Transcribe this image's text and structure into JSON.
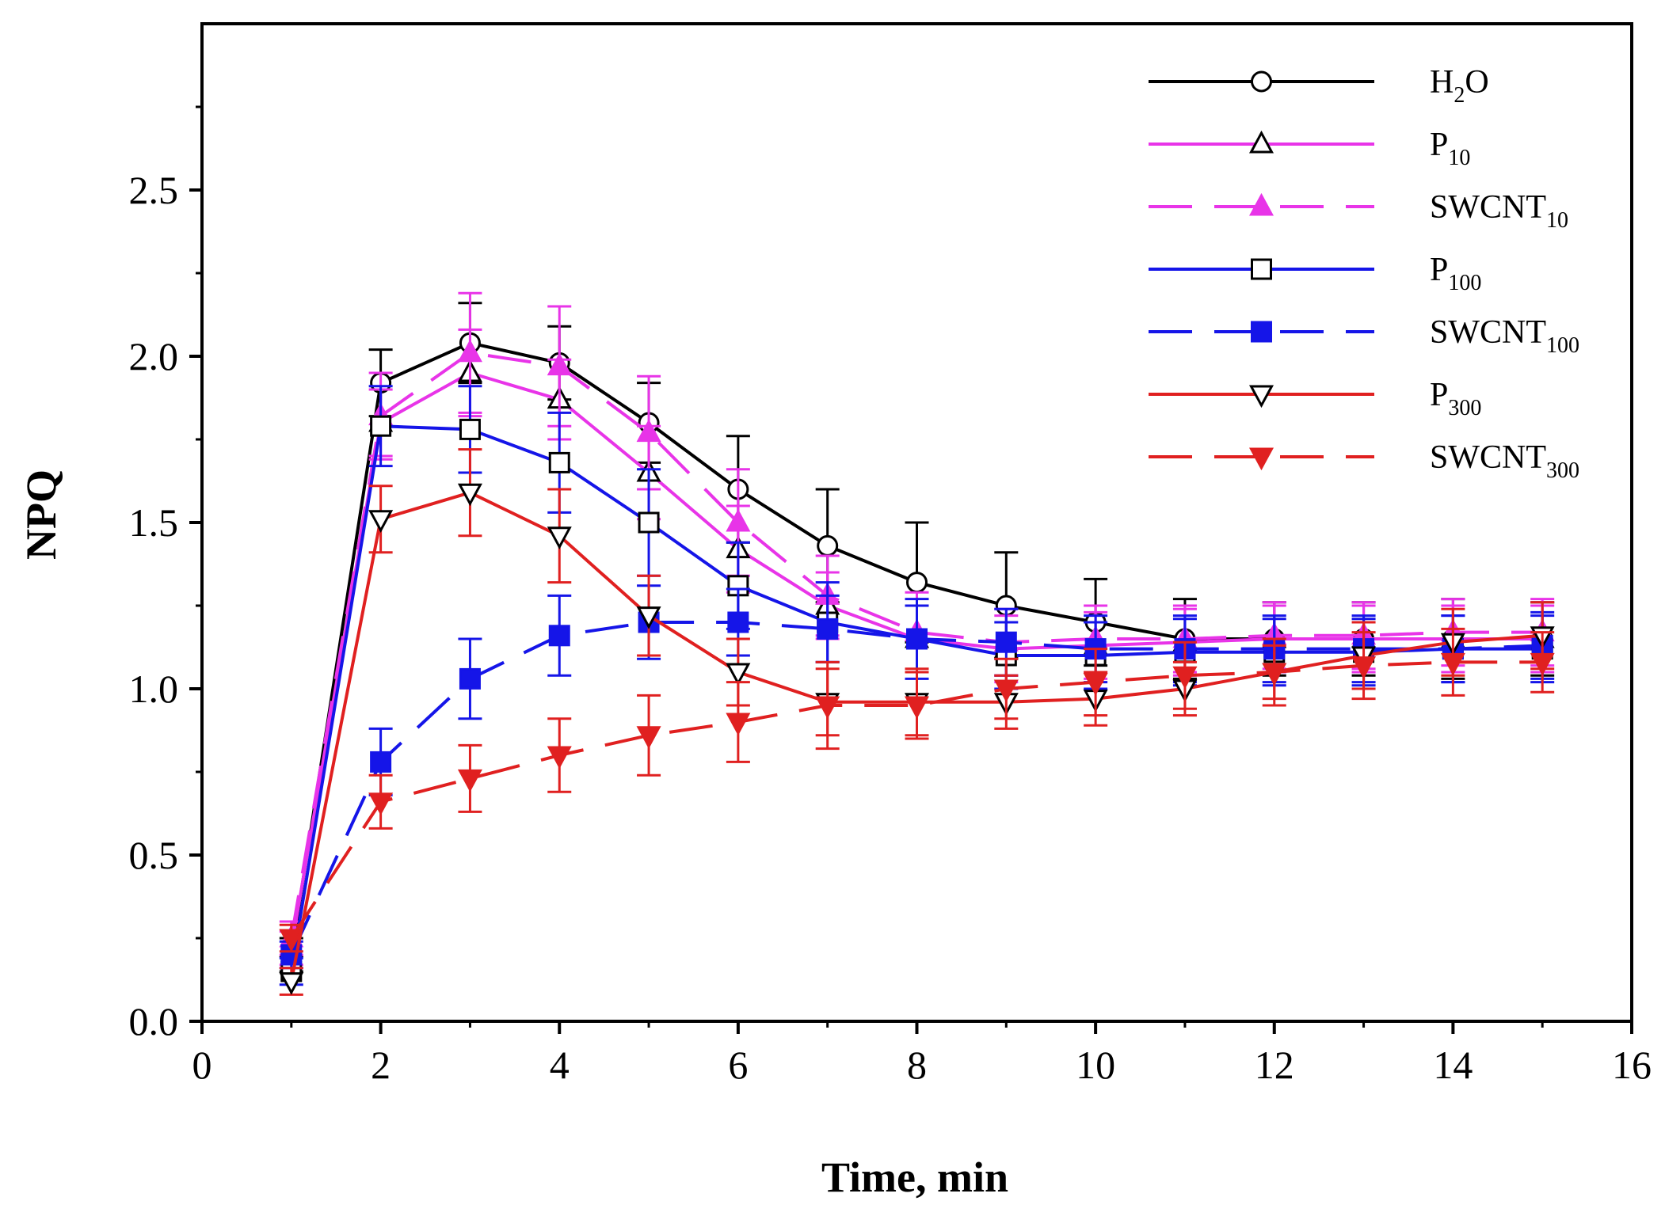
{
  "chart_data": {
    "type": "line",
    "title": "",
    "xlabel": "Time, min",
    "ylabel": "NPQ",
    "xlim": [
      0,
      16
    ],
    "ylim": [
      0,
      3
    ],
    "xticks": [
      0,
      2,
      4,
      6,
      8,
      10,
      12,
      14,
      16
    ],
    "yticks": [
      0,
      0.5,
      1,
      1.5,
      2,
      2.5
    ],
    "xtick_labels": [
      "0",
      "2",
      "4",
      "6",
      "8",
      "10",
      "12",
      "14",
      "16"
    ],
    "ytick_labels": [
      "0.0",
      "0.5",
      "1.0",
      "1.5",
      "2.0",
      "2.5"
    ],
    "grid": false,
    "legend_position": "top-right",
    "x": [
      1,
      2,
      3,
      4,
      5,
      6,
      7,
      8,
      9,
      10,
      11,
      12,
      13,
      14,
      15
    ],
    "series": [
      {
        "name": "H2O",
        "label_main": "H",
        "label_sub": "2",
        "label_tail": "O",
        "color": "#000000",
        "dash": "solid",
        "marker": "circle",
        "filled": false,
        "values": [
          0.2,
          1.92,
          2.04,
          1.98,
          1.8,
          1.6,
          1.43,
          1.32,
          1.25,
          1.2,
          1.15,
          1.15,
          1.15,
          1.15,
          1.15
        ],
        "errors": [
          0.05,
          0.1,
          0.12,
          0.11,
          0.12,
          0.16,
          0.17,
          0.18,
          0.16,
          0.13,
          0.12,
          0.11,
          0.11,
          0.12,
          0.11
        ]
      },
      {
        "name": "P10",
        "label_main": "P",
        "label_sub": "10",
        "label_tail": "",
        "color": "#e834e8",
        "dash": "solid",
        "marker": "triangle-up",
        "filled": false,
        "values": [
          0.22,
          1.8,
          1.95,
          1.87,
          1.65,
          1.42,
          1.25,
          1.15,
          1.12,
          1.13,
          1.14,
          1.15,
          1.15,
          1.15,
          1.15
        ],
        "errors": [
          0.05,
          0.1,
          0.13,
          0.12,
          0.14,
          0.13,
          0.1,
          0.1,
          0.1,
          0.1,
          0.1,
          0.1,
          0.1,
          0.1,
          0.1
        ]
      },
      {
        "name": "SWCNT10",
        "label_main": "SWCNT",
        "label_sub": "10",
        "label_tail": "",
        "color": "#e834e8",
        "dash": "long",
        "marker": "triangle-up",
        "filled": true,
        "values": [
          0.25,
          1.82,
          2.01,
          1.97,
          1.77,
          1.5,
          1.28,
          1.17,
          1.14,
          1.15,
          1.15,
          1.16,
          1.16,
          1.17,
          1.17
        ],
        "errors": [
          0.05,
          0.13,
          0.18,
          0.18,
          0.17,
          0.16,
          0.12,
          0.12,
          0.1,
          0.1,
          0.1,
          0.1,
          0.1,
          0.1,
          0.1
        ]
      },
      {
        "name": "P100",
        "label_main": "P",
        "label_sub": "100",
        "label_tail": "",
        "color": "#1515e8",
        "dash": "solid",
        "marker": "square",
        "filled": false,
        "values": [
          0.15,
          1.79,
          1.78,
          1.68,
          1.5,
          1.31,
          1.2,
          1.15,
          1.1,
          1.1,
          1.11,
          1.11,
          1.11,
          1.12,
          1.12
        ],
        "errors": [
          0.04,
          0.12,
          0.13,
          0.15,
          0.16,
          0.13,
          0.12,
          0.12,
          0.1,
          0.1,
          0.1,
          0.1,
          0.1,
          0.1,
          0.1
        ]
      },
      {
        "name": "SWCNT100",
        "label_main": "SWCNT",
        "label_sub": "100",
        "label_tail": "",
        "color": "#1515e8",
        "dash": "long",
        "marker": "square",
        "filled": true,
        "values": [
          0.2,
          0.78,
          1.03,
          1.16,
          1.2,
          1.2,
          1.18,
          1.15,
          1.14,
          1.12,
          1.12,
          1.12,
          1.12,
          1.12,
          1.13
        ],
        "errors": [
          0.04,
          0.1,
          0.12,
          0.12,
          0.11,
          0.1,
          0.1,
          0.1,
          0.1,
          0.1,
          0.1,
          0.1,
          0.1,
          0.1,
          0.1
        ]
      },
      {
        "name": "P300",
        "label_main": "P",
        "label_sub": "300",
        "label_tail": "",
        "color": "#e02020",
        "dash": "solid",
        "marker": "triangle-down",
        "filled": false,
        "values": [
          0.12,
          1.51,
          1.59,
          1.46,
          1.22,
          1.05,
          0.96,
          0.96,
          0.96,
          0.97,
          1.0,
          1.05,
          1.1,
          1.14,
          1.16
        ],
        "errors": [
          0.04,
          0.1,
          0.13,
          0.14,
          0.12,
          0.1,
          0.1,
          0.1,
          0.08,
          0.08,
          0.08,
          0.08,
          0.1,
          0.1,
          0.1
        ]
      },
      {
        "name": "SWCNT300",
        "label_main": "SWCNT",
        "label_sub": "300",
        "label_tail": "",
        "color": "#e02020",
        "dash": "long",
        "marker": "triangle-down",
        "filled": true,
        "values": [
          0.25,
          0.66,
          0.73,
          0.8,
          0.86,
          0.9,
          0.95,
          0.95,
          1.0,
          1.02,
          1.04,
          1.05,
          1.07,
          1.08,
          1.08
        ],
        "errors": [
          0.04,
          0.08,
          0.1,
          0.11,
          0.12,
          0.12,
          0.13,
          0.1,
          0.09,
          0.1,
          0.1,
          0.1,
          0.1,
          0.1,
          0.09
        ]
      }
    ]
  }
}
